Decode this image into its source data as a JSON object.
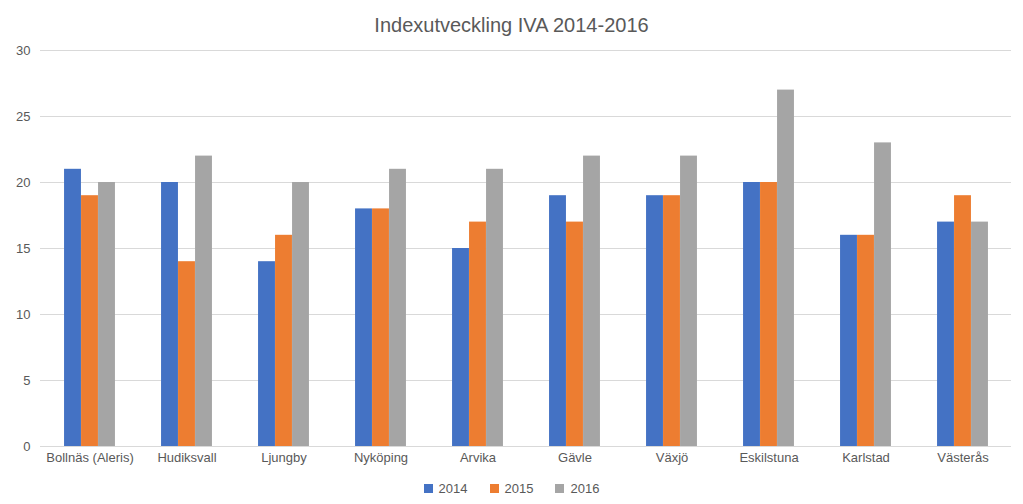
{
  "chart_data": {
    "type": "bar",
    "title": "Indexutveckling IVA 2014-2016",
    "categories": [
      "Bollnäs (Aleris)",
      "Hudiksvall",
      "Ljungby",
      "Nyköping",
      "Arvika",
      "Gävle",
      "Växjö",
      "Eskilstuna",
      "Karlstad",
      "Västerås"
    ],
    "series": [
      {
        "name": "2014",
        "color": "#4472c4",
        "values": [
          21,
          20,
          14,
          18,
          15,
          19,
          19,
          20,
          16,
          17
        ]
      },
      {
        "name": "2015",
        "color": "#ed7d31",
        "values": [
          19,
          14,
          16,
          18,
          17,
          17,
          19,
          20,
          16,
          19
        ]
      },
      {
        "name": "2016",
        "color": "#a5a5a5",
        "values": [
          20,
          22,
          20,
          21,
          21,
          22,
          22,
          27,
          23,
          17
        ]
      }
    ],
    "ylim": [
      0,
      30
    ],
    "yticks": [
      0,
      5,
      10,
      15,
      20,
      25,
      30
    ],
    "grid": true,
    "legend": "bottom"
  }
}
